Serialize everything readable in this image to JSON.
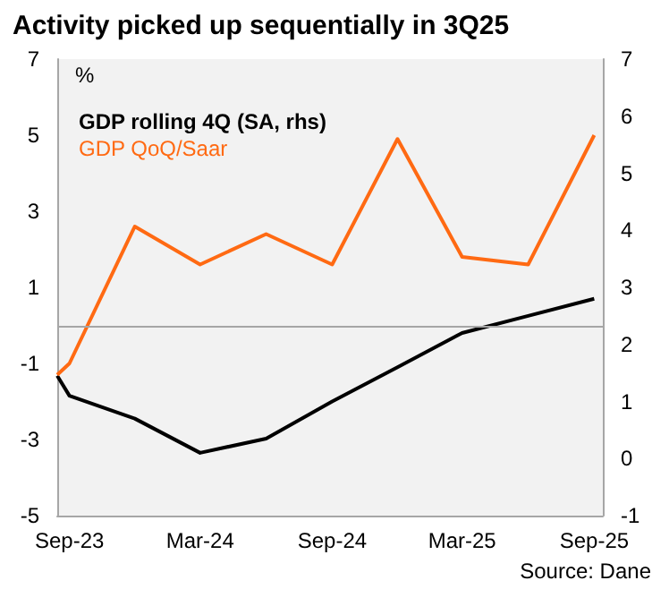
{
  "chart_data": {
    "type": "line",
    "title": "Activity picked up sequentially in 3Q25",
    "ylabel": "%",
    "x": [
      "2023-08-15",
      "2023-09",
      "2023-12",
      "2024-03",
      "2024-06",
      "2024-09",
      "2024-12",
      "2025-03",
      "2025-06",
      "2025-09"
    ],
    "series": [
      {
        "name": "GDP rolling 4Q (SA, rhs)",
        "color": "#000000",
        "axis": "y2",
        "values": [
          1.45,
          1.1,
          0.7,
          0.1,
          0.35,
          1.0,
          1.6,
          2.2,
          2.5,
          2.8
        ]
      },
      {
        "name": "GDP QoQ/Saar",
        "color": "#ff6a13",
        "values": [
          -1.3,
          -1.0,
          2.6,
          1.6,
          2.4,
          1.6,
          4.9,
          1.8,
          1.6,
          5.0
        ]
      }
    ],
    "xlim": [
      "2023-08-15",
      "2025-09-13"
    ],
    "xticks": [
      {
        "value": "2023-09",
        "label": "Sep-23"
      },
      {
        "value": "2024-03",
        "label": "Mar-24"
      },
      {
        "value": "2024-09",
        "label": "Sep-24"
      },
      {
        "value": "2025-03",
        "label": "Mar-25"
      },
      {
        "value": "2025-09",
        "label": "Sep-25"
      }
    ],
    "ylim": [
      -5,
      7
    ],
    "yticks": [
      -5,
      -3,
      -1,
      1,
      3,
      5,
      7
    ],
    "y2lim": [
      -1,
      7
    ],
    "y2ticks": [
      -1,
      0,
      1,
      2,
      3,
      4,
      5,
      6,
      7
    ],
    "ref_lines": [
      {
        "axis": "y",
        "value": 0,
        "color": "#a6a6a6"
      }
    ],
    "legend": "top left",
    "grid": false,
    "marker": "none",
    "line_style": "solid",
    "annotations": [
      "Source: Dane"
    ]
  }
}
